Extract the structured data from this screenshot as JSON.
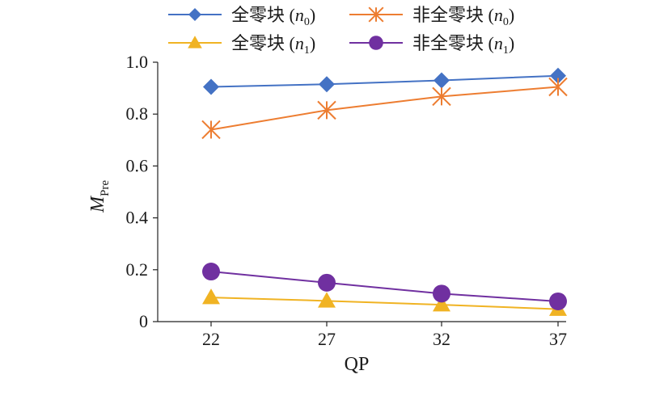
{
  "chart_data": {
    "type": "line",
    "xlabel": "QP",
    "ylabel_main": "M",
    "ylabel_sub": "Pre",
    "categories": [
      "22",
      "27",
      "32",
      "37"
    ],
    "ylim": [
      0,
      1.0
    ],
    "yticks": [
      "0",
      "0.2",
      "0.4",
      "0.6",
      "0.8",
      "1.0"
    ],
    "grid": false,
    "legend_position": "top",
    "series": [
      {
        "name": "全零块 (n0)",
        "label_main": "全零块 (",
        "label_var": "n",
        "label_sub": "0",
        "label_end": ")",
        "color": "#4472c4",
        "marker": "diamond",
        "values": [
          0.905,
          0.915,
          0.93,
          0.948
        ]
      },
      {
        "name": "非全零块 (n0)",
        "label_main": "非全零块 (",
        "label_var": "n",
        "label_sub": "0",
        "label_end": ")",
        "color": "#ed7d31",
        "marker": "star",
        "values": [
          0.74,
          0.815,
          0.868,
          0.905
        ]
      },
      {
        "name": "全零块 (n1)",
        "label_main": "全零块 (",
        "label_var": "n",
        "label_sub": "1",
        "label_end": ")",
        "color": "#f0b323",
        "marker": "triangle",
        "values": [
          0.093,
          0.08,
          0.065,
          0.048
        ]
      },
      {
        "name": "非全零块 (n1)",
        "label_main": "非全零块 (",
        "label_var": "n",
        "label_sub": "1",
        "label_end": ")",
        "color": "#7030a0",
        "marker": "circle",
        "values": [
          0.193,
          0.15,
          0.108,
          0.078
        ]
      }
    ]
  }
}
